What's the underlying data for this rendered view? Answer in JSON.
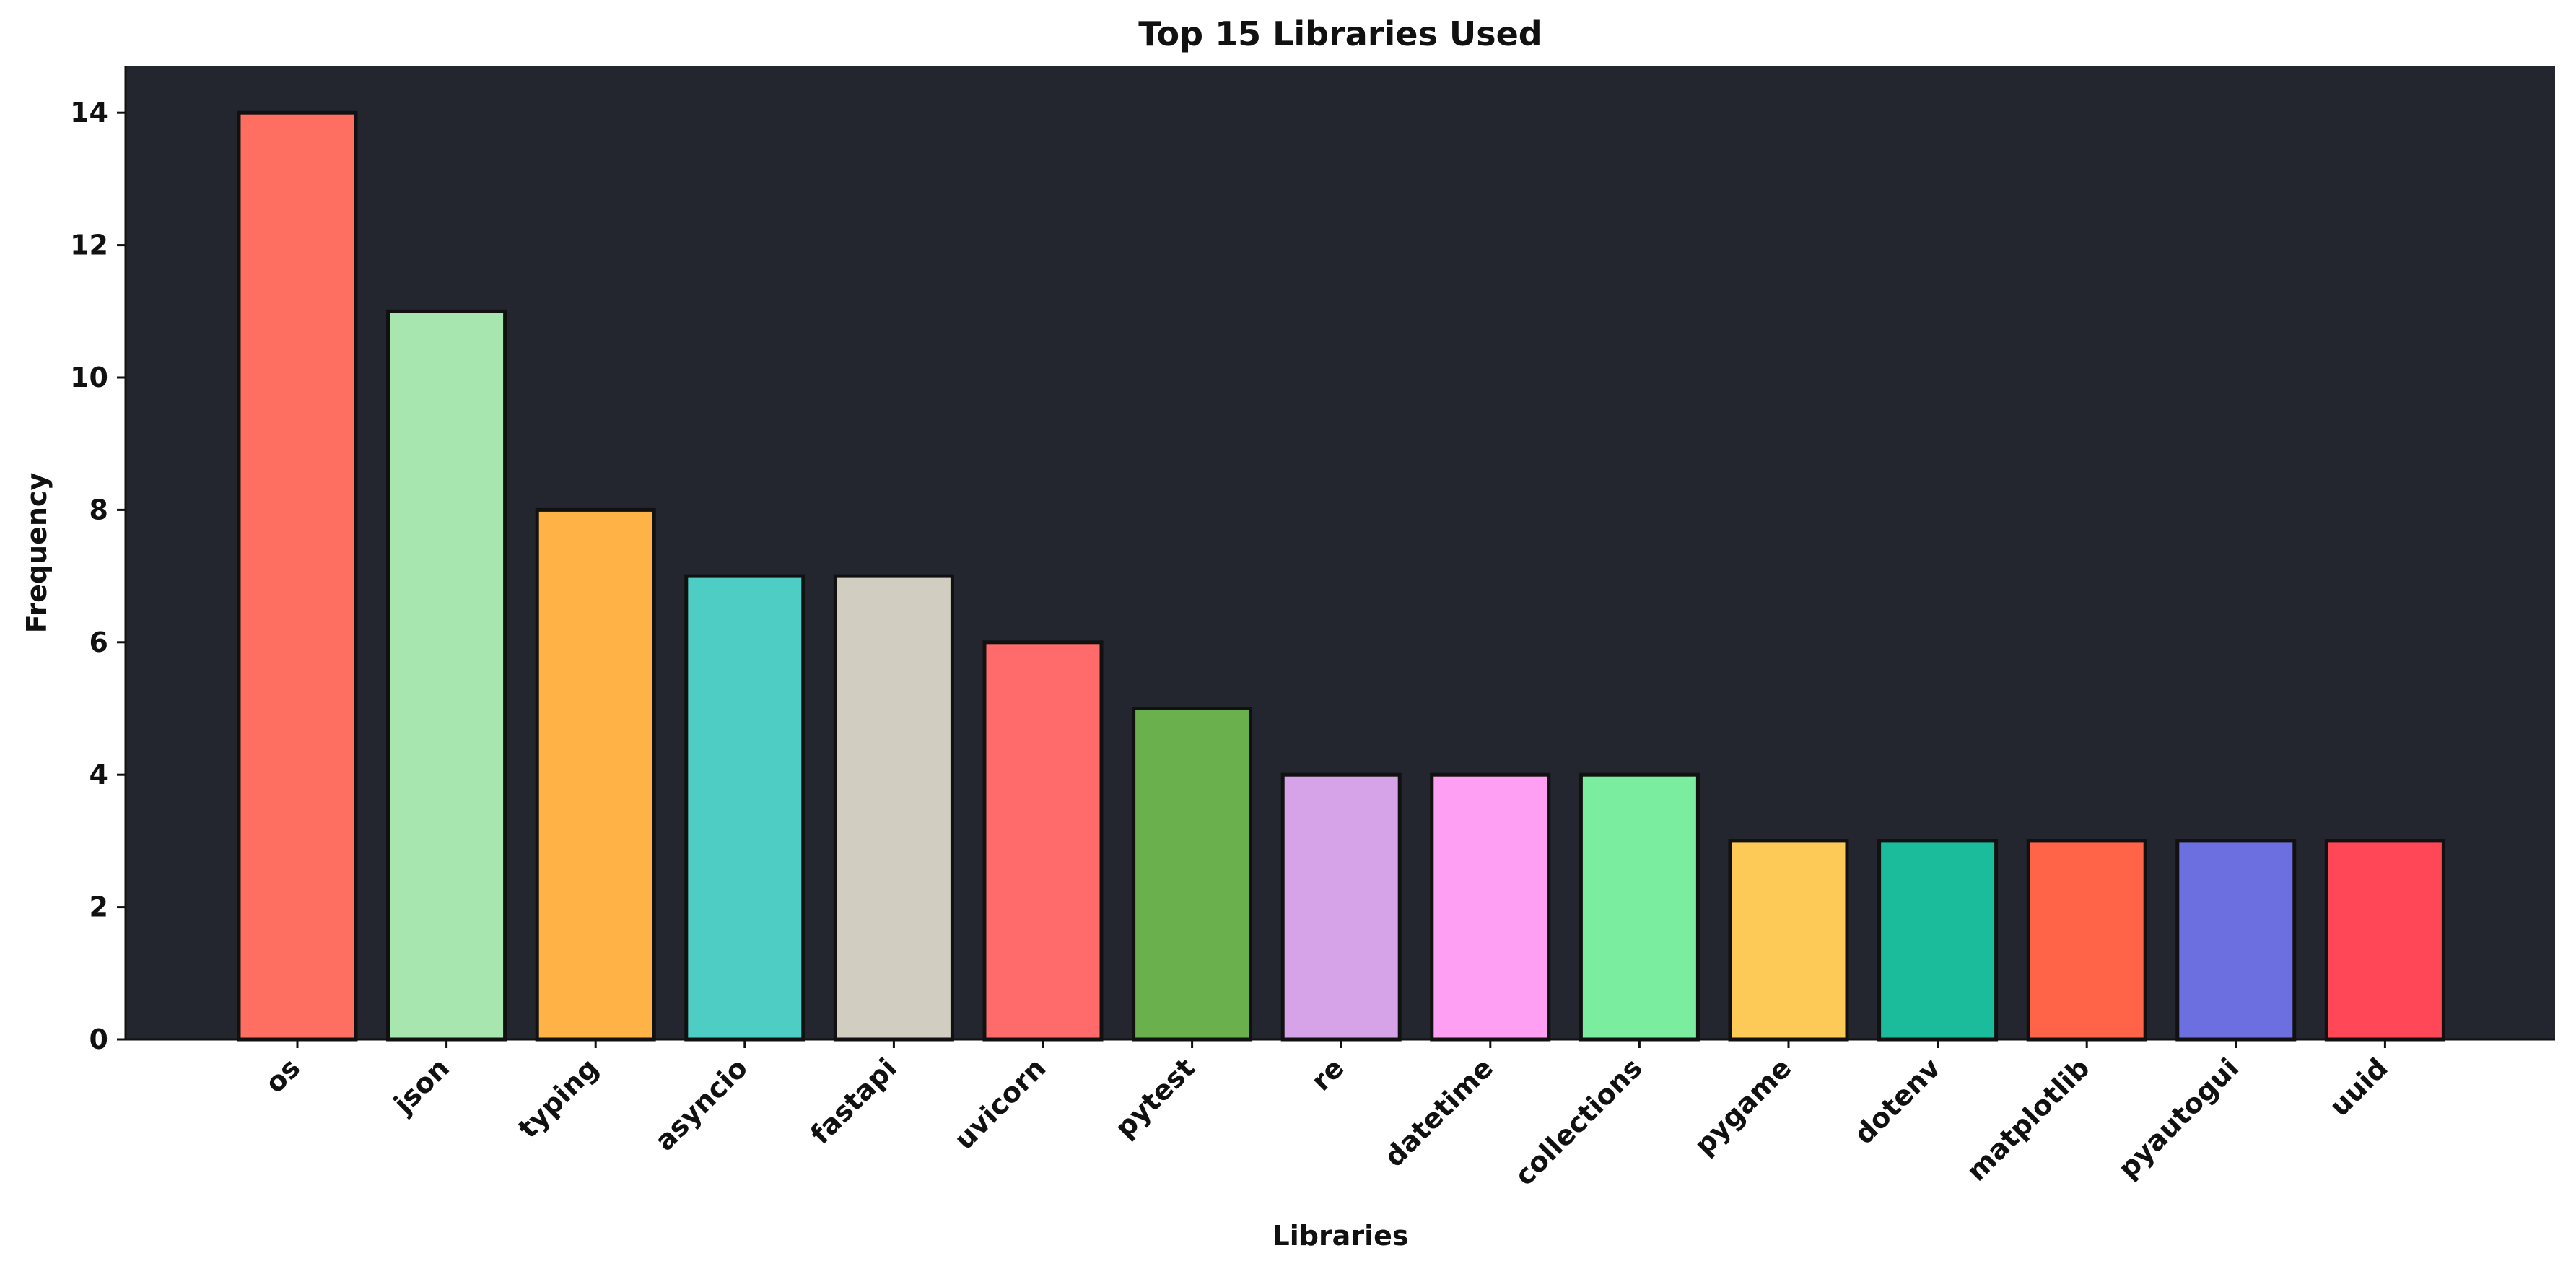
{
  "chart_data": {
    "type": "bar",
    "title": "Top 15 Libraries Used",
    "xlabel": "Libraries",
    "ylabel": "Frequency",
    "categories": [
      "os",
      "json",
      "typing",
      "asyncio",
      "fastapi",
      "uvicorn",
      "pytest",
      "re",
      "datetime",
      "collections",
      "pygame",
      "dotenv",
      "matplotlib",
      "pyautogui",
      "uuid"
    ],
    "values": [
      14,
      11,
      8,
      7,
      7,
      6,
      5,
      4,
      4,
      4,
      3,
      3,
      3,
      3,
      3
    ],
    "colors": [
      "#FF6F61",
      "#A8E6B0",
      "#FFB347",
      "#4ECDC4",
      "#D2CDC1",
      "#FF6B6B",
      "#6AB04C",
      "#D6A2E8",
      "#FF9FF3",
      "#7BED9F",
      "#FECA57",
      "#1ABC9C",
      "#FF6348",
      "#6C6FE0",
      "#FF4757"
    ],
    "ylim": [
      0,
      14.7
    ],
    "yticks": [
      0,
      2,
      4,
      6,
      8,
      10,
      12,
      14
    ],
    "grid": false,
    "plot_background": "#23262E",
    "bar_edge_color": "#111111"
  }
}
